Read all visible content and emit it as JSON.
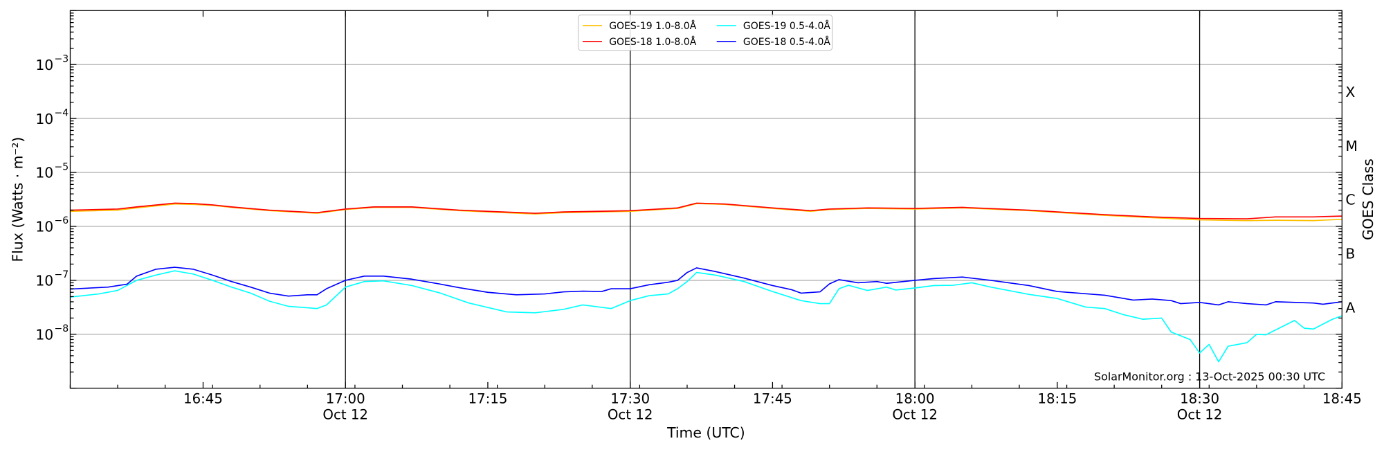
{
  "chart_data": {
    "type": "line",
    "xlabel": "Time (UTC)",
    "ylabel": "Flux (Watts · m⁻²)",
    "y2label": "GOES Class",
    "yscale": "log",
    "ylim": [
      1e-09,
      0.01
    ],
    "xlim": [
      "16:31",
      "18:45"
    ],
    "grid": true,
    "legend_placement": "top-center",
    "annotation": "SolarMonitor.org : 13-Oct-2025 00:30 UTC",
    "y_ticks": [
      {
        "value": 0.001,
        "label": "10",
        "exp": "−3"
      },
      {
        "value": 0.0001,
        "label": "10",
        "exp": "−4"
      },
      {
        "value": 1e-05,
        "label": "10",
        "exp": "−5"
      },
      {
        "value": 1e-06,
        "label": "10",
        "exp": "−6"
      },
      {
        "value": 1e-07,
        "label": "10",
        "exp": "−7"
      },
      {
        "value": 1e-08,
        "label": "10",
        "exp": "−8"
      }
    ],
    "x_ticks": [
      {
        "time": "16:45",
        "label": "16:45",
        "date": ""
      },
      {
        "time": "17:00",
        "label": "17:00",
        "date": "Oct 12"
      },
      {
        "time": "17:15",
        "label": "17:15",
        "date": ""
      },
      {
        "time": "17:30",
        "label": "17:30",
        "date": "Oct 12"
      },
      {
        "time": "17:45",
        "label": "17:45",
        "date": ""
      },
      {
        "time": "18:00",
        "label": "18:00",
        "date": "Oct 12"
      },
      {
        "time": "18:15",
        "label": "18:15",
        "date": ""
      },
      {
        "time": "18:30",
        "label": "18:30",
        "date": "Oct 12"
      },
      {
        "time": "18:45",
        "label": "18:45",
        "date": ""
      }
    ],
    "vertical_lines": [
      "17:00",
      "17:30",
      "18:00",
      "18:30"
    ],
    "goes_classes": [
      {
        "label": "X",
        "value": 0.000316
      },
      {
        "label": "M",
        "value": 3.16e-05
      },
      {
        "label": "C",
        "value": 3.16e-06
      },
      {
        "label": "B",
        "value": 3.16e-07
      },
      {
        "label": "A",
        "value": 3.16e-08
      }
    ],
    "series": [
      {
        "name": "GOES-19 1.0-8.0Å",
        "color": "#FFC000",
        "points": [
          [
            "16:31",
            1.9e-06
          ],
          [
            "16:36",
            2e-06
          ],
          [
            "16:38",
            2.2e-06
          ],
          [
            "16:42",
            2.6e-06
          ],
          [
            "16:44",
            2.55e-06
          ],
          [
            "16:46",
            2.45e-06
          ],
          [
            "16:48",
            2.25e-06
          ],
          [
            "16:52",
            1.95e-06
          ],
          [
            "16:57",
            1.75e-06
          ],
          [
            "17:00",
            2.05e-06
          ],
          [
            "17:03",
            2.25e-06
          ],
          [
            "17:07",
            2.25e-06
          ],
          [
            "17:12",
            1.95e-06
          ],
          [
            "17:20",
            1.7e-06
          ],
          [
            "17:23",
            1.8e-06
          ],
          [
            "17:30",
            1.9e-06
          ],
          [
            "17:35",
            2.15e-06
          ],
          [
            "17:37",
            2.65e-06
          ],
          [
            "17:40",
            2.55e-06
          ],
          [
            "17:45",
            2.15e-06
          ],
          [
            "17:49",
            1.9e-06
          ],
          [
            "17:51",
            2.05e-06
          ],
          [
            "17:55",
            2.15e-06
          ],
          [
            "18:00",
            2.1e-06
          ],
          [
            "18:05",
            2.2e-06
          ],
          [
            "18:12",
            1.95e-06
          ],
          [
            "18:20",
            1.6e-06
          ],
          [
            "18:25",
            1.45e-06
          ],
          [
            "18:30",
            1.32e-06
          ],
          [
            "18:35",
            1.28e-06
          ],
          [
            "18:38",
            1.3e-06
          ],
          [
            "18:42",
            1.28e-06
          ],
          [
            "18:45",
            1.35e-06
          ]
        ]
      },
      {
        "name": "GOES-18 1.0-8.0Å",
        "color": "#FF0000",
        "points": [
          [
            "16:31",
            2e-06
          ],
          [
            "16:36",
            2.1e-06
          ],
          [
            "16:38",
            2.3e-06
          ],
          [
            "16:42",
            2.7e-06
          ],
          [
            "16:44",
            2.65e-06
          ],
          [
            "16:46",
            2.5e-06
          ],
          [
            "16:48",
            2.3e-06
          ],
          [
            "16:52",
            2e-06
          ],
          [
            "16:57",
            1.8e-06
          ],
          [
            "17:00",
            2.1e-06
          ],
          [
            "17:03",
            2.3e-06
          ],
          [
            "17:07",
            2.3e-06
          ],
          [
            "17:12",
            2e-06
          ],
          [
            "17:20",
            1.75e-06
          ],
          [
            "17:23",
            1.85e-06
          ],
          [
            "17:30",
            1.95e-06
          ],
          [
            "17:35",
            2.2e-06
          ],
          [
            "17:37",
            2.7e-06
          ],
          [
            "17:40",
            2.6e-06
          ],
          [
            "17:45",
            2.2e-06
          ],
          [
            "17:49",
            1.95e-06
          ],
          [
            "17:51",
            2.1e-06
          ],
          [
            "17:55",
            2.2e-06
          ],
          [
            "18:00",
            2.15e-06
          ],
          [
            "18:05",
            2.25e-06
          ],
          [
            "18:12",
            2e-06
          ],
          [
            "18:20",
            1.65e-06
          ],
          [
            "18:25",
            1.5e-06
          ],
          [
            "18:30",
            1.4e-06
          ],
          [
            "18:35",
            1.38e-06
          ],
          [
            "18:38",
            1.5e-06
          ],
          [
            "18:42",
            1.5e-06
          ],
          [
            "18:45",
            1.55e-06
          ]
        ]
      },
      {
        "name": "GOES-19 0.5-4.0Å",
        "color": "#00FFFF",
        "points": [
          [
            "16:31",
            4.9e-08
          ],
          [
            "16:34",
            5.6e-08
          ],
          [
            "16:36",
            6.5e-08
          ],
          [
            "16:38",
            1e-07
          ],
          [
            "16:40",
            1.25e-07
          ],
          [
            "16:42",
            1.5e-07
          ],
          [
            "16:44",
            1.3e-07
          ],
          [
            "16:46",
            1e-07
          ],
          [
            "16:48",
            7.5e-08
          ],
          [
            "16:50",
            5.8e-08
          ],
          [
            "16:52",
            4.1e-08
          ],
          [
            "16:54",
            3.3e-08
          ],
          [
            "16:56",
            3.1e-08
          ],
          [
            "16:57",
            3e-08
          ],
          [
            "16:58",
            3.5e-08
          ],
          [
            "17:00",
            7.5e-08
          ],
          [
            "17:02",
            9.5e-08
          ],
          [
            "17:04",
            9.8e-08
          ],
          [
            "17:07",
            8e-08
          ],
          [
            "17:10",
            5.8e-08
          ],
          [
            "17:13",
            3.8e-08
          ],
          [
            "17:17",
            2.6e-08
          ],
          [
            "17:20",
            2.5e-08
          ],
          [
            "17:23",
            2.9e-08
          ],
          [
            "17:25",
            3.5e-08
          ],
          [
            "17:28",
            3e-08
          ],
          [
            "17:30",
            4.2e-08
          ],
          [
            "17:32",
            5.2e-08
          ],
          [
            "17:34",
            5.6e-08
          ],
          [
            "17:35",
            7e-08
          ],
          [
            "17:36",
            9.5e-08
          ],
          [
            "17:37",
            1.4e-07
          ],
          [
            "17:39",
            1.25e-07
          ],
          [
            "17:42",
            9.5e-08
          ],
          [
            "17:45",
            6.2e-08
          ],
          [
            "17:48",
            4.2e-08
          ],
          [
            "17:50",
            3.7e-08
          ],
          [
            "17:51",
            3.7e-08
          ],
          [
            "17:52",
            7e-08
          ],
          [
            "17:53",
            8.1e-08
          ],
          [
            "17:55",
            6.5e-08
          ],
          [
            "17:57",
            7.5e-08
          ],
          [
            "17:58",
            6.6e-08
          ],
          [
            "18:00",
            7.2e-08
          ],
          [
            "18:02",
            8e-08
          ],
          [
            "18:04",
            8.1e-08
          ],
          [
            "18:06",
            9e-08
          ],
          [
            "18:08",
            7.5e-08
          ],
          [
            "18:12",
            5.5e-08
          ],
          [
            "18:15",
            4.6e-08
          ],
          [
            "18:18",
            3.2e-08
          ],
          [
            "18:20",
            3e-08
          ],
          [
            "18:22",
            2.3e-08
          ],
          [
            "18:24",
            1.9e-08
          ],
          [
            "18:26",
            2e-08
          ],
          [
            "18:27",
            1.1e-08
          ],
          [
            "18:29",
            8e-09
          ],
          [
            "18:30",
            4.5e-09
          ],
          [
            "18:31",
            6.5e-09
          ],
          [
            "18:32",
            3.1e-09
          ],
          [
            "18:33",
            6e-09
          ],
          [
            "18:35",
            7e-09
          ],
          [
            "18:36",
            1e-08
          ],
          [
            "18:37",
            9.8e-09
          ],
          [
            "18:38",
            1.2e-08
          ],
          [
            "18:40",
            1.8e-08
          ],
          [
            "18:41",
            1.3e-08
          ],
          [
            "18:42",
            1.25e-08
          ],
          [
            "18:44",
            1.9e-08
          ],
          [
            "18:45",
            2.2e-08
          ]
        ]
      },
      {
        "name": "GOES-18 0.5-4.0Å",
        "color": "#0000FF",
        "points": [
          [
            "16:31",
            6.9e-08
          ],
          [
            "16:35",
            7.5e-08
          ],
          [
            "16:37",
            8.5e-08
          ],
          [
            "16:38",
            1.2e-07
          ],
          [
            "16:40",
            1.6e-07
          ],
          [
            "16:42",
            1.75e-07
          ],
          [
            "16:44",
            1.6e-07
          ],
          [
            "16:46",
            1.25e-07
          ],
          [
            "16:48",
            9.5e-08
          ],
          [
            "16:50",
            7.5e-08
          ],
          [
            "16:52",
            5.8e-08
          ],
          [
            "16:54",
            5.1e-08
          ],
          [
            "16:56",
            5.4e-08
          ],
          [
            "16:57",
            5.4e-08
          ],
          [
            "16:58",
            7e-08
          ],
          [
            "17:00",
            1e-07
          ],
          [
            "17:02",
            1.2e-07
          ],
          [
            "17:04",
            1.2e-07
          ],
          [
            "17:07",
            1.05e-07
          ],
          [
            "17:10",
            8.5e-08
          ],
          [
            "17:12",
            7.3e-08
          ],
          [
            "17:15",
            6e-08
          ],
          [
            "17:18",
            5.4e-08
          ],
          [
            "17:21",
            5.6e-08
          ],
          [
            "17:23",
            6.1e-08
          ],
          [
            "17:25",
            6.3e-08
          ],
          [
            "17:27",
            6.2e-08
          ],
          [
            "17:28",
            7e-08
          ],
          [
            "17:30",
            7e-08
          ],
          [
            "17:32",
            8.3e-08
          ],
          [
            "17:34",
            9.2e-08
          ],
          [
            "17:35",
            1e-07
          ],
          [
            "17:36",
            1.4e-07
          ],
          [
            "17:37",
            1.7e-07
          ],
          [
            "17:39",
            1.45e-07
          ],
          [
            "17:42",
            1.1e-07
          ],
          [
            "17:45",
            8e-08
          ],
          [
            "17:47",
            6.7e-08
          ],
          [
            "17:48",
            5.8e-08
          ],
          [
            "17:50",
            6.1e-08
          ],
          [
            "17:51",
            8.6e-08
          ],
          [
            "17:52",
            1.03e-07
          ],
          [
            "17:54",
            9e-08
          ],
          [
            "17:56",
            9.5e-08
          ],
          [
            "17:57",
            8.8e-08
          ],
          [
            "18:00",
            1e-07
          ],
          [
            "18:02",
            1.08e-07
          ],
          [
            "18:05",
            1.15e-07
          ],
          [
            "18:08",
            1e-07
          ],
          [
            "18:12",
            8e-08
          ],
          [
            "18:15",
            6.2e-08
          ],
          [
            "18:20",
            5.3e-08
          ],
          [
            "18:23",
            4.3e-08
          ],
          [
            "18:25",
            4.5e-08
          ],
          [
            "18:27",
            4.2e-08
          ],
          [
            "18:28",
            3.7e-08
          ],
          [
            "18:30",
            3.9e-08
          ],
          [
            "18:32",
            3.5e-08
          ],
          [
            "18:33",
            4e-08
          ],
          [
            "18:35",
            3.7e-08
          ],
          [
            "18:37",
            3.5e-08
          ],
          [
            "18:38",
            4e-08
          ],
          [
            "18:42",
            3.8e-08
          ],
          [
            "18:43",
            3.6e-08
          ],
          [
            "18:45",
            4e-08
          ]
        ]
      }
    ]
  }
}
